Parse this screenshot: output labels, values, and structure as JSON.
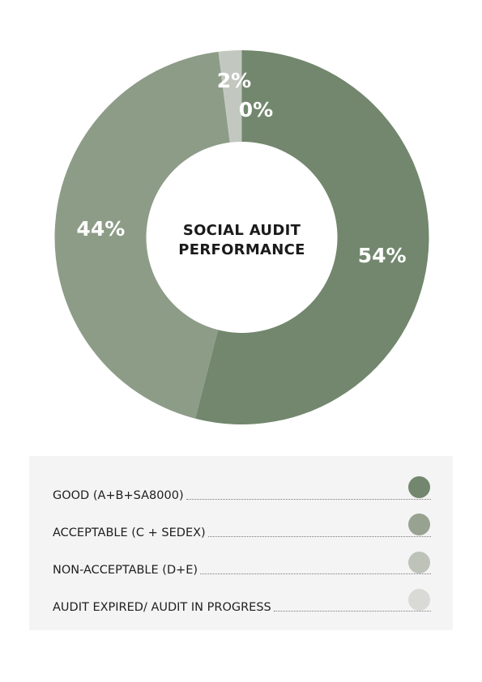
{
  "chart_data": {
    "type": "pie",
    "variant": "donut",
    "title": "SOCIAL AUDIT\nPERFORMANCE",
    "title_lines": [
      "SOCIAL AUDIT",
      "PERFORMANCE"
    ],
    "slices": [
      {
        "label": "GOOD (A+B+SA8000)",
        "value": 54,
        "display": "54%",
        "color": "#72876d"
      },
      {
        "label": "ACCEPTABLE (C + SEDEX)",
        "value": 44,
        "display": "44%",
        "color": "#8d9c87"
      },
      {
        "label": "NON-ACCEPTABLE (D+E)",
        "value": 2,
        "display": "2%",
        "color": "#c2c8bf"
      },
      {
        "label": "AUDIT EXPIRED/ AUDIT IN PROGRESS",
        "value": 0,
        "display": "0%",
        "color": "#dadad6"
      }
    ],
    "start_angle": "12 o'clock",
    "direction": "clockwise",
    "legend": "bottom"
  },
  "legend": {
    "items": [
      {
        "label": "GOOD (A+B+SA8000)",
        "swatch_color": "#72876d"
      },
      {
        "label": "ACCEPTABLE (C + SEDEX)",
        "swatch_color": "#97a291"
      },
      {
        "label": "NON-ACCEPTABLE (D+E)",
        "swatch_color": "#bec3ba"
      },
      {
        "label": "AUDIT EXPIRED/ AUDIT IN PROGRESS",
        "swatch_color": "#d9dad6"
      }
    ]
  }
}
